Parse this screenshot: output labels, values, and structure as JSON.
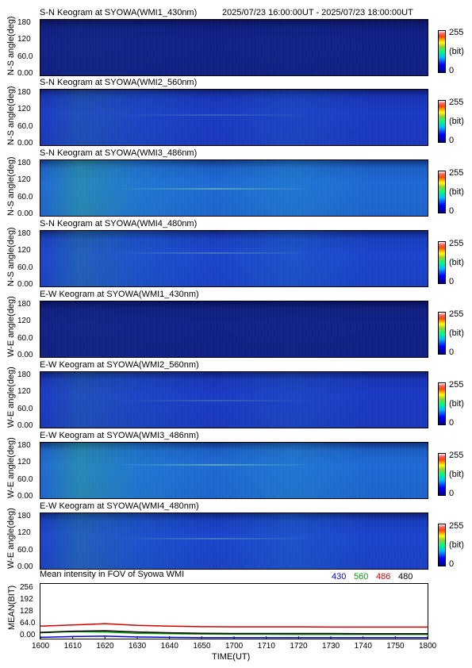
{
  "header": {
    "time_range": "2025/07/23 16:00:00UT - 2025/07/23 18:00:00UT"
  },
  "colorbar": {
    "max_label": "255",
    "unit_label": "(bit)",
    "min_label": "0"
  },
  "keograms": [
    {
      "title": "S-N Keogram at SYOWA(WMI1_430nm)",
      "ylabel": "N-S angle(deg)",
      "yticks": [
        "180",
        "120",
        "60.0",
        "0.00"
      ],
      "base_color": "#10208a",
      "intensity": 0.05
    },
    {
      "title": "S-N Keogram at SYOWA(WMI2_560nm)",
      "ylabel": "N-S angle(deg)",
      "yticks": [
        "180",
        "120",
        "60.0",
        "0.00"
      ],
      "base_color": "#1a3ac8",
      "intensity": 0.25
    },
    {
      "title": "S-N Keogram at SYOWA(WMI3_486nm)",
      "ylabel": "N-S angle(deg)",
      "yticks": [
        "180",
        "120",
        "60.0",
        "0.00"
      ],
      "base_color": "#1e6ad8",
      "intensity": 0.55
    },
    {
      "title": "S-N Keogram at SYOWA(WMI4_480nm)",
      "ylabel": "N-S angle(deg)",
      "yticks": [
        "180",
        "120",
        "60.0",
        "0.00"
      ],
      "base_color": "#1a44d0",
      "intensity": 0.35
    },
    {
      "title": "E-W Keogram at SYOWA(WMI1_430nm)",
      "ylabel": "W-E angle(deg)",
      "yticks": [
        "180",
        "120",
        "60.0",
        "0.00"
      ],
      "base_color": "#10208a",
      "intensity": 0.05
    },
    {
      "title": "E-W Keogram at SYOWA(WMI2_560nm)",
      "ylabel": "W-E angle(deg)",
      "yticks": [
        "180",
        "120",
        "60.0",
        "0.00"
      ],
      "base_color": "#1a3ac8",
      "intensity": 0.25
    },
    {
      "title": "E-W Keogram at SYOWA(WMI3_486nm)",
      "ylabel": "W-E angle(deg)",
      "yticks": [
        "180",
        "120",
        "60.0",
        "0.00"
      ],
      "base_color": "#1e6ad8",
      "intensity": 0.55
    },
    {
      "title": "E-W Keogram at SYOWA(WMI4_480nm)",
      "ylabel": "W-E angle(deg)",
      "yticks": [
        "180",
        "120",
        "60.0",
        "0.00"
      ],
      "base_color": "#1a44d0",
      "intensity": 0.35
    }
  ],
  "chart_data": {
    "type": "line",
    "title": "Mean intensity in FOV of Syowa WMI",
    "xlabel": "TIME(UT)",
    "ylabel": "MEAN(BIT)",
    "x_ticks": [
      "1600",
      "1610",
      "1620",
      "1630",
      "1640",
      "1650",
      "1700",
      "1710",
      "1720",
      "1730",
      "1740",
      "1750",
      "1800"
    ],
    "y_ticks": [
      "256",
      "192",
      "128",
      "64.0",
      "0.00"
    ],
    "ylim": [
      0,
      256
    ],
    "x": [
      0,
      10,
      20,
      30,
      40,
      50,
      60,
      70,
      80,
      90,
      100,
      110,
      120
    ],
    "series": [
      {
        "name": "430",
        "color": "#0000cc",
        "values": [
          6,
          10,
          12,
          8,
          6,
          5,
          5,
          5,
          5,
          5,
          5,
          5,
          5
        ]
      },
      {
        "name": "560",
        "color": "#00a000",
        "values": [
          28,
          34,
          32,
          26,
          24,
          22,
          21,
          21,
          20,
          20,
          20,
          20,
          20
        ]
      },
      {
        "name": "486",
        "color": "#d00000",
        "values": [
          60,
          66,
          72,
          64,
          60,
          58,
          57,
          57,
          57,
          56,
          56,
          56,
          56
        ]
      },
      {
        "name": "480",
        "color": "#000000",
        "values": [
          30,
          36,
          38,
          32,
          28,
          26,
          25,
          25,
          25,
          25,
          24,
          24,
          24
        ]
      }
    ]
  }
}
